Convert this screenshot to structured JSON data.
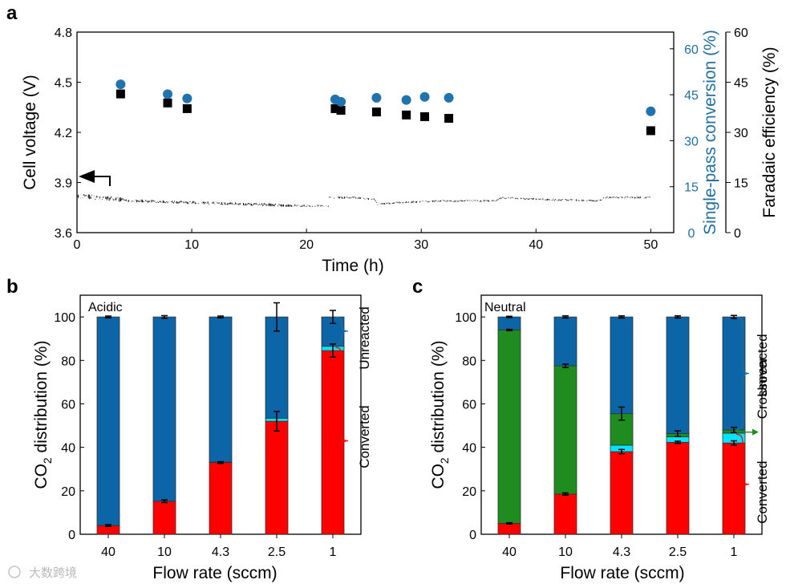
{
  "colors": {
    "red": "#ff0000",
    "blue": "#0b65a6",
    "cyan": "#00e5ff",
    "green": "#1e8c1e",
    "black": "#000000",
    "axis_blue": "#1f6fa3"
  },
  "watermark": "大数跨境",
  "chart_data": [
    {
      "panel": "a",
      "type": "scatter",
      "xlabel": "Time (h)",
      "ylabel": "Cell voltage (V)",
      "y2label": "Single-pass conversion (%)",
      "y3label": "Faradaic efficiency (%)",
      "xlim": [
        0,
        52
      ],
      "ylim": [
        3.6,
        4.8
      ],
      "y2lim": [
        0,
        65.45
      ],
      "y3lim": [
        0,
        60
      ],
      "xticks": [
        "0",
        "10",
        "20",
        "30",
        "40",
        "50"
      ],
      "yticks": [
        "3.6",
        "3.9",
        "4.2",
        "4.5",
        "4.8"
      ],
      "y2ticks": [
        "0",
        "15",
        "30",
        "45",
        "60"
      ],
      "y3ticks": [
        "0",
        "15",
        "30",
        "45",
        "60"
      ],
      "series": [
        {
          "name": "Single-pass conversion",
          "marker": "circle",
          "axis": "y2",
          "x": [
            3.8,
            7.9,
            9.6,
            22.5,
            23.0,
            26.1,
            28.7,
            30.3,
            32.4,
            50.0
          ],
          "values": [
            48.4,
            45.2,
            43.8,
            43.5,
            42.7,
            44.0,
            43.3,
            44.3,
            44.0,
            39.6
          ]
        },
        {
          "name": "Faradaic efficiency",
          "marker": "square",
          "axis": "y3",
          "x": [
            3.8,
            7.9,
            9.6,
            22.5,
            23.0,
            26.1,
            28.7,
            30.3,
            32.4,
            50.0
          ],
          "values": [
            41.5,
            38.8,
            37.1,
            37.1,
            36.6,
            36.1,
            35.2,
            34.7,
            34.2,
            30.5
          ]
        },
        {
          "name": "Cell voltage",
          "marker": "line",
          "axis": "y",
          "x": [
            0,
            2,
            5,
            10,
            15,
            20,
            21.9,
            22.0,
            24,
            25.9,
            26.2,
            28,
            32,
            36.5,
            37,
            40,
            45.5,
            46,
            50
          ],
          "values": [
            3.82,
            3.81,
            3.79,
            3.78,
            3.77,
            3.76,
            3.76,
            3.81,
            3.81,
            3.8,
            3.77,
            3.78,
            3.79,
            3.79,
            3.81,
            3.8,
            3.79,
            3.81,
            3.81
          ]
        }
      ]
    },
    {
      "panel": "b",
      "type": "bar",
      "stacked": true,
      "annotation": "Acidic",
      "xlabel": "Flow rate (sccm)",
      "ylabel_parts": [
        "CO",
        "2",
        " distribution (%)"
      ],
      "ylim": [
        0,
        110
      ],
      "yticks": [
        "0",
        "20",
        "40",
        "60",
        "80",
        "100"
      ],
      "categories": [
        "40",
        "10",
        "4.3",
        "2.5",
        "1"
      ],
      "series": [
        {
          "name": "Converted",
          "color": "#ff0000",
          "values": [
            4,
            15.2,
            33,
            52,
            84.5
          ]
        },
        {
          "name": "Crossover",
          "color": "#00e5ff",
          "values": [
            0,
            0,
            0.2,
            1.4,
            2
          ]
        },
        {
          "name": "Unreacted",
          "color": "#0b65a6",
          "values": [
            96,
            84.8,
            66.8,
            46.6,
            13.5
          ]
        }
      ],
      "error_top": [
        0.4,
        0.6,
        0.4,
        6.5,
        3.0
      ],
      "error_converted": [
        0.4,
        0.6,
        0.4,
        4.5,
        3.0
      ],
      "brackets": [
        {
          "label": "Unreacted",
          "from": 87,
          "to": 100,
          "color": "#1f6fa3"
        },
        {
          "label": "Converted",
          "from": 0,
          "to": 86,
          "color": "#ff0000"
        }
      ]
    },
    {
      "panel": "c",
      "type": "bar",
      "stacked": true,
      "annotation": "Neutral",
      "xlabel": "Flow rate (sccm)",
      "ylabel_parts": [
        "CO",
        "2",
        " distribution (%)"
      ],
      "ylim": [
        0,
        110
      ],
      "yticks": [
        "0",
        "20",
        "40",
        "60",
        "80",
        "100"
      ],
      "categories": [
        "40",
        "10",
        "4.3",
        "2.5",
        "1"
      ],
      "series": [
        {
          "name": "Converted",
          "color": "#ff0000",
          "values": [
            5,
            18.5,
            38,
            42.3,
            42
          ]
        },
        {
          "name": "Crossover (cyan)",
          "color": "#00e5ff",
          "values": [
            0,
            0,
            3,
            2.5,
            4.5
          ]
        },
        {
          "name": "Crossover",
          "color": "#1e8c1e",
          "values": [
            89,
            59,
            14.5,
            1.5,
            1.5
          ]
        },
        {
          "name": "Unreacted",
          "color": "#0b65a6",
          "values": [
            6,
            22.5,
            44.5,
            53.7,
            52
          ]
        }
      ],
      "error_top": [
        0.3,
        0.5,
        0.5,
        0.5,
        0.7
      ],
      "error_mid": [
        0.3,
        0.8,
        3.0,
        1.3,
        1.2
      ],
      "error_converted": [
        0.3,
        0.5,
        1.0,
        0.5,
        1.0
      ],
      "brackets": [
        {
          "label": "Unreacted",
          "from": 48,
          "to": 100,
          "color": "#1f6fa3"
        },
        {
          "label": "Crossover",
          "from": 47,
          "to": 47,
          "color": "#1e8c1e"
        },
        {
          "label": "Converted",
          "from": 0,
          "to": 46,
          "color": "#ff0000"
        }
      ]
    }
  ]
}
